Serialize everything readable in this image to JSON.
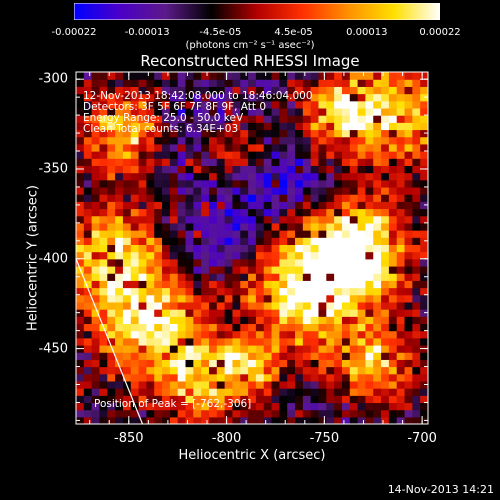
{
  "chart_data": {
    "type": "heatmap",
    "title": "Reconstructed RHESSI Image",
    "xlabel": "Heliocentric X (arcsec)",
    "ylabel": "Heliocentric Y (arcsec)",
    "xlim": [
      -877,
      -697
    ],
    "ylim": [
      -492,
      -296
    ],
    "xticks": [
      {
        "value": -850,
        "label": "-850"
      },
      {
        "value": -800,
        "label": "-800"
      },
      {
        "value": -750,
        "label": "-750"
      },
      {
        "value": -700,
        "label": "-700"
      }
    ],
    "yticks": [
      {
        "value": -300,
        "label": "-300"
      },
      {
        "value": -350,
        "label": "-350"
      },
      {
        "value": -400,
        "label": "-400"
      },
      {
        "value": -450,
        "label": "-450"
      }
    ],
    "colorbar": {
      "min": -0.00022,
      "max": 0.00022,
      "ticks": [
        "-0.00022",
        "-0.00013",
        "-4.5e-05",
        "4.5e-05",
        "0.00013",
        "0.00022"
      ],
      "units_label": "(photons cm⁻² s⁻¹ asec⁻²)",
      "colormap": [
        "#0000ff",
        "#4b00c8",
        "#5c1a8a",
        "#000000",
        "#b40000",
        "#ff3000",
        "#ff9000",
        "#ffe000",
        "#ffffff"
      ]
    },
    "annotations": {
      "time_range": "12-Nov-2013 18:42:08.000 to 18:46:04.000",
      "detectors": "Detectors: 3F 5F 6F 7F 8F 9F, Att 0",
      "energy": "Energy Range: 25.0 - 50.0 keV",
      "method": "Clean    Total counts: 6.34E+03",
      "peak": "Position of Peak = [-762,-306]"
    },
    "peak_position": [
      -762,
      -306
    ],
    "limb_line": [
      [
        -877,
        -400
      ],
      [
        -843,
        -492
      ]
    ],
    "hot_regions": [
      {
        "x": -862,
        "y": -400,
        "r": 28,
        "level": 0.75
      },
      {
        "x": -855,
        "y": -330,
        "r": 22,
        "level": 0.7
      },
      {
        "x": -840,
        "y": -440,
        "r": 30,
        "level": 0.8
      },
      {
        "x": -812,
        "y": -470,
        "r": 24,
        "level": 0.6
      },
      {
        "x": -762,
        "y": -420,
        "r": 34,
        "level": 0.85
      },
      {
        "x": -735,
        "y": -395,
        "r": 26,
        "level": 0.9
      },
      {
        "x": -725,
        "y": -460,
        "r": 22,
        "level": 0.6
      },
      {
        "x": -715,
        "y": -320,
        "r": 30,
        "level": 0.75
      },
      {
        "x": -745,
        "y": -320,
        "r": 18,
        "level": 0.65
      },
      {
        "x": -800,
        "y": -340,
        "r": 16,
        "level": 0.5
      },
      {
        "x": -790,
        "y": -460,
        "r": 14,
        "level": 0.5
      }
    ],
    "cold_regions": [
      {
        "x": -805,
        "y": -395,
        "r": 24,
        "level": 0.9
      },
      {
        "x": -815,
        "y": -330,
        "r": 20,
        "level": 0.7
      },
      {
        "x": -780,
        "y": -360,
        "r": 22,
        "level": 0.6
      },
      {
        "x": -800,
        "y": -440,
        "r": 18,
        "level": 0.45
      },
      {
        "x": -760,
        "y": -360,
        "r": 16,
        "level": 0.4
      }
    ],
    "axis_color": "#ffffff"
  },
  "footer": {
    "timestamp": "14-Nov-2013 14:21"
  }
}
